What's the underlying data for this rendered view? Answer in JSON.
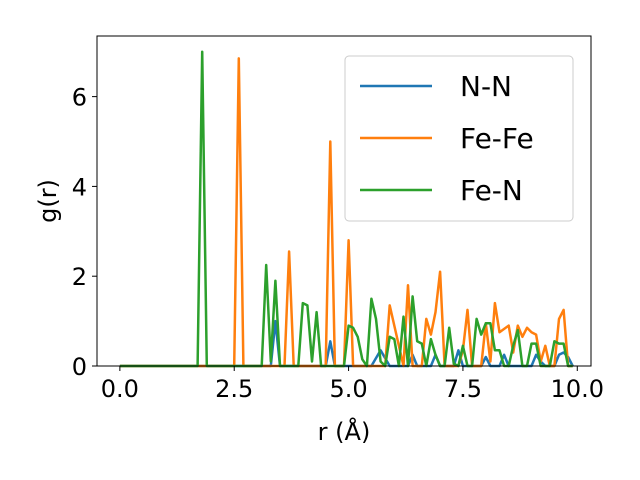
{
  "chart_data": {
    "type": "line",
    "xlabel": "r (Å)",
    "ylabel": "g(r)",
    "xlim": [
      -0.5,
      10.3
    ],
    "ylim": [
      0,
      7.35
    ],
    "xticks": [
      0.0,
      2.5,
      5.0,
      7.5,
      10.0
    ],
    "xtick_labels": [
      "0.0",
      "2.5",
      "5.0",
      "7.5",
      "10.0"
    ],
    "yticks": [
      0,
      2,
      4,
      6
    ],
    "ytick_labels": [
      "0",
      "2",
      "4",
      "6"
    ],
    "grid": false,
    "legend_position": "top-right",
    "series": [
      {
        "name": "N-N",
        "color": "#1f77b4",
        "x": [
          0.0,
          3.2,
          3.3,
          3.4,
          3.5,
          3.6,
          4.5,
          4.6,
          4.7,
          5.5,
          5.7,
          5.9,
          6.3,
          6.4,
          6.5,
          6.8,
          6.9,
          7.0,
          7.3,
          7.4,
          7.5,
          7.9,
          8.0,
          8.1,
          8.3,
          8.4,
          8.5,
          9.0,
          9.1,
          9.2,
          9.3,
          9.5,
          9.6,
          9.7,
          9.8,
          9.9
        ],
        "y": [
          0.0,
          0.0,
          0.0,
          1.0,
          0.0,
          0.0,
          0.0,
          0.55,
          0.0,
          0.0,
          0.35,
          0.0,
          0.0,
          0.25,
          0.0,
          0.0,
          0.25,
          0.0,
          0.0,
          0.35,
          0.0,
          0.0,
          0.2,
          0.0,
          0.0,
          0.25,
          0.0,
          0.0,
          0.25,
          0.1,
          0.0,
          0.0,
          0.25,
          0.3,
          0.2,
          0.0
        ]
      },
      {
        "name": "Fe-Fe",
        "color": "#ff7f0e",
        "x": [
          0.0,
          2.5,
          2.6,
          2.7,
          2.8,
          3.6,
          3.7,
          3.8,
          4.5,
          4.6,
          4.7,
          4.9,
          5.0,
          5.1,
          5.6,
          5.7,
          5.8,
          5.9,
          6.2,
          6.3,
          6.4,
          6.6,
          6.7,
          6.8,
          6.9,
          7.0,
          7.1,
          7.4,
          7.5,
          7.6,
          7.7,
          7.9,
          8.0,
          8.1,
          8.2,
          8.3,
          8.5,
          8.6,
          8.7,
          8.8,
          8.9,
          9.0,
          9.1,
          9.2,
          9.3,
          9.4,
          9.5,
          9.6,
          9.7,
          9.8,
          9.9
        ],
        "y": [
          0.0,
          0.0,
          6.85,
          0.0,
          0.0,
          0.0,
          2.55,
          0.0,
          0.0,
          5.0,
          0.0,
          0.0,
          2.8,
          0.0,
          0.0,
          0.0,
          0.0,
          1.35,
          0.0,
          1.8,
          0.0,
          0.0,
          1.05,
          0.7,
          1.2,
          2.1,
          0.0,
          0.0,
          0.35,
          1.25,
          0.0,
          0.0,
          0.95,
          0.1,
          1.4,
          0.75,
          0.9,
          0.3,
          0.9,
          0.65,
          0.85,
          0.75,
          0.7,
          0.1,
          0.45,
          0.0,
          0.0,
          1.05,
          1.25,
          0.0,
          0.0
        ]
      },
      {
        "name": "Fe-N",
        "color": "#2ca02c",
        "x": [
          0.0,
          1.7,
          1.8,
          1.9,
          2.0,
          3.1,
          3.2,
          3.3,
          3.4,
          3.5,
          3.6,
          3.8,
          3.9,
          4.0,
          4.1,
          4.2,
          4.3,
          4.4,
          4.5,
          4.9,
          5.0,
          5.1,
          5.2,
          5.3,
          5.4,
          5.5,
          5.6,
          5.7,
          5.8,
          5.9,
          6.0,
          6.1,
          6.2,
          6.3,
          6.4,
          6.5,
          6.6,
          6.7,
          6.8,
          6.9,
          7.0,
          7.1,
          7.2,
          7.3,
          7.4,
          7.5,
          7.6,
          7.7,
          7.8,
          7.9,
          8.0,
          8.1,
          8.2,
          8.3,
          8.4,
          8.5,
          8.6,
          8.7,
          8.8,
          8.9,
          9.0,
          9.1,
          9.2,
          9.3,
          9.4,
          9.5,
          9.6,
          9.7,
          9.8,
          9.9
        ],
        "y": [
          0.0,
          0.0,
          7.0,
          0.0,
          0.0,
          0.0,
          2.25,
          0.1,
          1.9,
          0.0,
          0.0,
          0.0,
          0.0,
          1.4,
          1.35,
          0.1,
          1.2,
          0.0,
          0.0,
          0.0,
          0.9,
          0.85,
          0.65,
          0.15,
          0.0,
          1.5,
          1.05,
          0.1,
          0.0,
          0.65,
          0.6,
          0.0,
          1.1,
          0.0,
          1.55,
          0.55,
          0.5,
          0.0,
          0.6,
          0.25,
          0.0,
          0.0,
          0.85,
          0.05,
          0.0,
          0.45,
          0.0,
          0.0,
          1.05,
          0.7,
          0.95,
          0.95,
          0.35,
          0.35,
          0.0,
          0.0,
          0.45,
          0.8,
          0.0,
          0.0,
          0.5,
          0.5,
          0.0,
          0.0,
          0.0,
          0.55,
          0.5,
          0.5,
          0.0,
          0.0
        ]
      }
    ]
  }
}
